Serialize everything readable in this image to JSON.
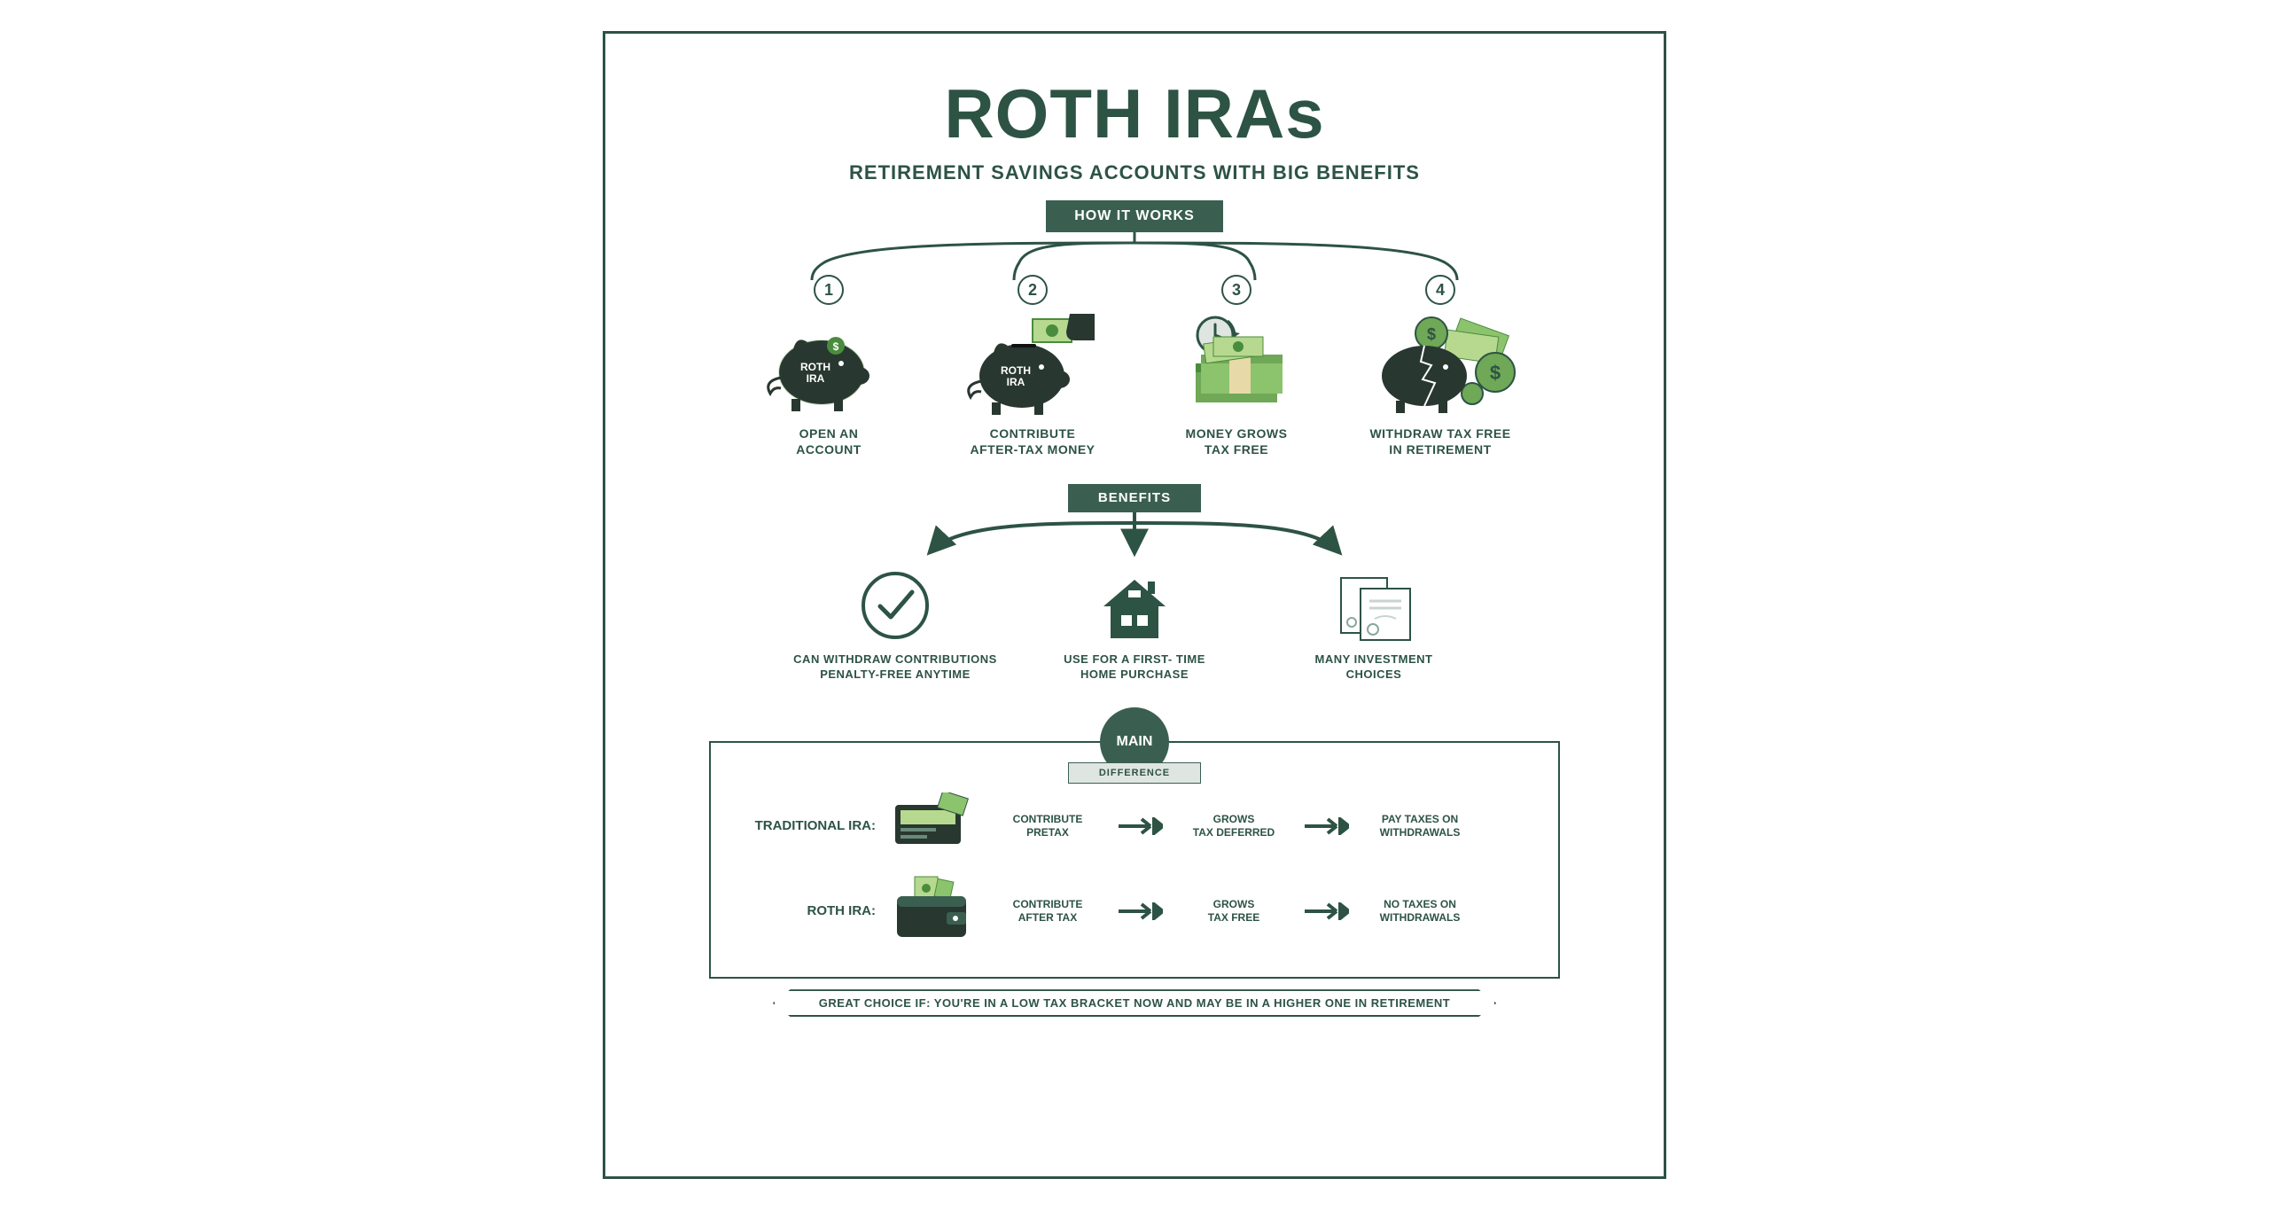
{
  "colors": {
    "primary": "#2d5345",
    "ribbon": "#3a5f51",
    "ribbon_side": "#6a8a7b",
    "light_green": "#6fa856",
    "mid_green": "#4a8c3e",
    "dark_green": "#28372f",
    "cash_light": "#b6d98f",
    "background": "#ffffff"
  },
  "typography": {
    "title_fontsize": 78,
    "subtitle_fontsize": 22,
    "ribbon_fontsize": 16,
    "step_label_fontsize": 14,
    "benefit_label_fontsize": 13,
    "diff_item_fontsize": 12
  },
  "title": "ROTH IRAs",
  "subtitle": "RETIREMENT SAVINGS ACCOUNTS WITH BIG BENEFITS",
  "ribbon_how": "HOW IT WORKS",
  "steps": [
    {
      "num": "1",
      "piggy_text": "ROTH\nIRA",
      "label": "OPEN AN\nACCOUNT"
    },
    {
      "num": "2",
      "piggy_text": "ROTH\nIRA",
      "label": "CONTRIBUTE\nAFTER-TAX MONEY"
    },
    {
      "num": "3",
      "label": "MONEY GROWS\nTAX FREE"
    },
    {
      "num": "4",
      "label": "WITHDRAW TAX FREE\nIN RETIREMENT"
    }
  ],
  "ribbon_benefits": "BENEFITS",
  "benefits": [
    {
      "label": "CAN WITHDRAW CONTRIBUTIONS\nPENALTY-FREE ANYTIME"
    },
    {
      "label": "USE FOR A FIRST- TIME\nHOME PURCHASE"
    },
    {
      "label": "MANY INVESTMENT\nCHOICES"
    }
  ],
  "main_badge": "MAIN",
  "diff_badge": "DIFFERENCE",
  "diff_rows": [
    {
      "name": "TRADITIONAL IRA:",
      "items": [
        "CONTRIBUTE\nPRETAX",
        "GROWS\nTAX DEFERRED",
        "PAY TAXES ON\nWITHDRAWALS"
      ]
    },
    {
      "name": "ROTH IRA:",
      "items": [
        "CONTRIBUTE\nAFTER TAX",
        "GROWS\nTAX FREE",
        "NO TAXES ON\nWITHDRAWALS"
      ]
    }
  ],
  "bottom_note": "GREAT CHOICE IF: YOU'RE IN A LOW TAX BRACKET NOW AND MAY BE IN A HIGHER ONE IN RETIREMENT"
}
